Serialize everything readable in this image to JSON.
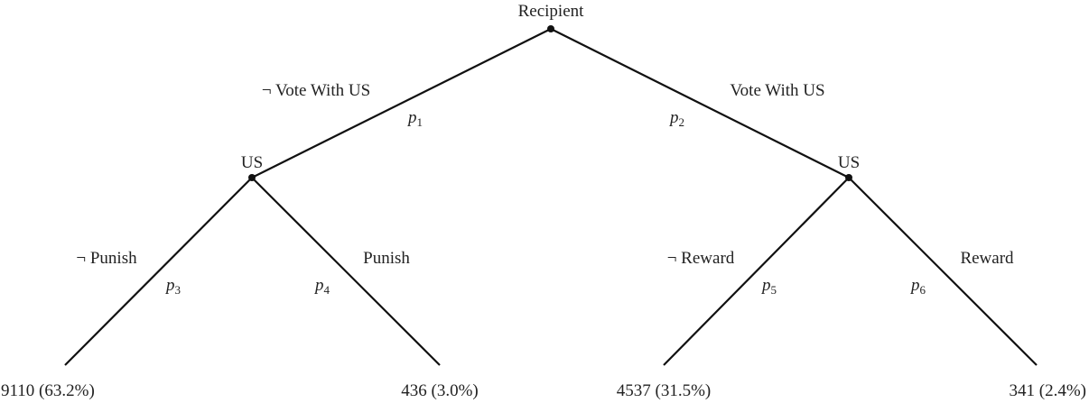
{
  "root": {
    "label": "Recipient"
  },
  "branches": [
    {
      "label": "¬ Vote With US",
      "probability": {
        "symbol": "p",
        "index": "1"
      },
      "node": {
        "label": "US"
      },
      "branches": [
        {
          "label": "¬ Punish",
          "probability": {
            "symbol": "p",
            "index": "3"
          },
          "outcome": "9110 (63.2%)"
        },
        {
          "label": "Punish",
          "probability": {
            "symbol": "p",
            "index": "4"
          },
          "outcome": "436 (3.0%)"
        }
      ]
    },
    {
      "label": "Vote With US",
      "probability": {
        "symbol": "p",
        "index": "2"
      },
      "node": {
        "label": "US"
      },
      "branches": [
        {
          "label": "¬ Reward",
          "probability": {
            "symbol": "p",
            "index": "5"
          },
          "outcome": "4537 (31.5%)"
        },
        {
          "label": "Reward",
          "probability": {
            "symbol": "p",
            "index": "6"
          },
          "outcome": "341 (2.4%)"
        }
      ]
    }
  ]
}
